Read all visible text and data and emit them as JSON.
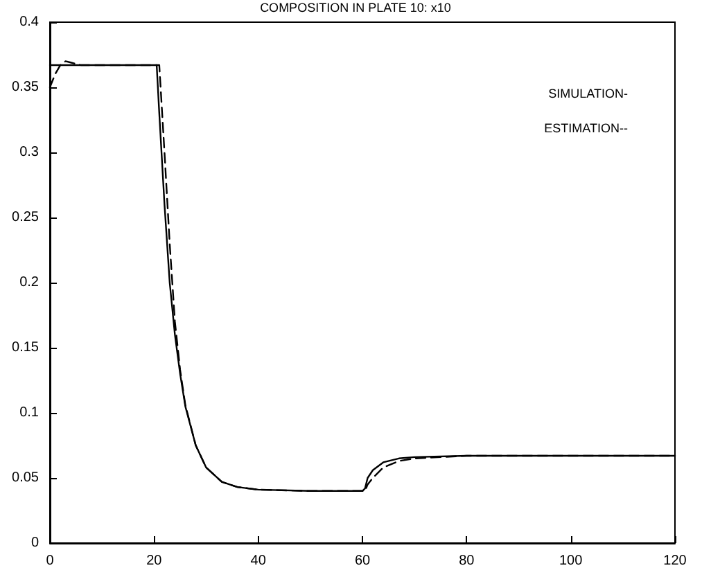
{
  "chart_data": {
    "type": "line",
    "title": "COMPOSITION IN PLATE 10: x10",
    "annotations": [
      "SIMULATION-",
      "ESTIMATION--"
    ],
    "xlim": [
      0,
      120
    ],
    "xticks": [
      0,
      20,
      40,
      60,
      80,
      100,
      120
    ],
    "ylim": [
      0,
      0.4
    ],
    "yticks": [
      0,
      0.05,
      0.1,
      0.15,
      0.2,
      0.25,
      0.3,
      0.35,
      0.4
    ],
    "grid": false,
    "marker": "none",
    "series": [
      {
        "color": "#000000",
        "line_style": "solid",
        "x": [
          0,
          20.5,
          21,
          22,
          23,
          24,
          25,
          26,
          28,
          30,
          33,
          36,
          40,
          50,
          60,
          60.5,
          61,
          62,
          64,
          67,
          70,
          80,
          120
        ],
        "values": [
          0.367,
          0.367,
          0.33,
          0.26,
          0.2,
          0.16,
          0.13,
          0.105,
          0.075,
          0.058,
          0.047,
          0.043,
          0.041,
          0.04,
          0.04,
          0.042,
          0.05,
          0.056,
          0.062,
          0.065,
          0.066,
          0.067,
          0.067
        ]
      },
      {
        "color": "#000000",
        "line_style": "dashed",
        "x": [
          0,
          1,
          2,
          3,
          4,
          6,
          21,
          22,
          23,
          24,
          25,
          26,
          28,
          30,
          33,
          36,
          40,
          50,
          60,
          60.5,
          61,
          62,
          64,
          67,
          70,
          80,
          120
        ],
        "values": [
          0.35,
          0.36,
          0.367,
          0.37,
          0.369,
          0.367,
          0.367,
          0.3,
          0.23,
          0.17,
          0.133,
          0.106,
          0.075,
          0.058,
          0.047,
          0.043,
          0.041,
          0.04,
          0.04,
          0.04,
          0.045,
          0.05,
          0.058,
          0.063,
          0.065,
          0.067,
          0.067
        ]
      }
    ]
  }
}
